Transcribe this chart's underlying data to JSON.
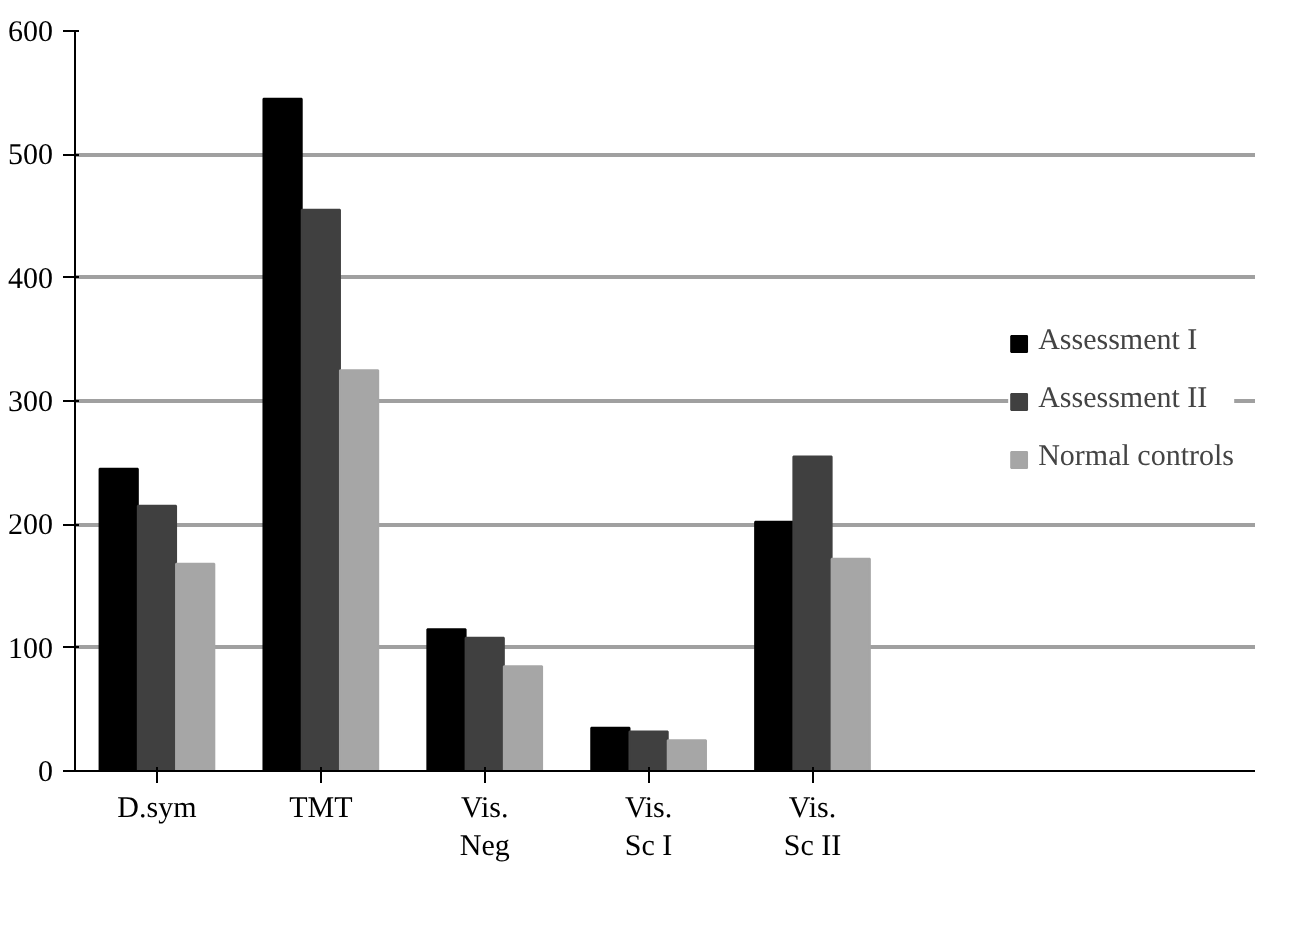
{
  "chart_data": {
    "type": "bar",
    "categories": [
      "D.sym",
      "TMT",
      "Vis.\nNeg",
      "Vis.\nSc I",
      "Vis.\nSc II"
    ],
    "series": [
      {
        "name": "Assessment I",
        "color": "#000000",
        "values": [
          245,
          545,
          115,
          35,
          202
        ]
      },
      {
        "name": "Assessment II",
        "color": "#404040",
        "values": [
          215,
          455,
          108,
          32,
          255
        ]
      },
      {
        "name": "Normal controls",
        "color": "#a6a6a6",
        "values": [
          168,
          325,
          85,
          25,
          172
        ]
      }
    ],
    "ylim": [
      0,
      600
    ],
    "yticks": [
      0,
      100,
      200,
      300,
      400,
      500,
      600
    ],
    "grid": "y",
    "legend": "right"
  }
}
